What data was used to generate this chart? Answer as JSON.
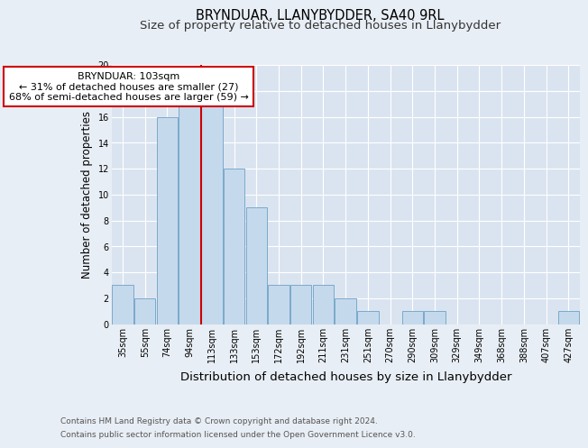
{
  "title": "BRYNDUAR, LLANYBYDDER, SA40 9RL",
  "subtitle": "Size of property relative to detached houses in Llanybydder",
  "xlabel": "Distribution of detached houses by size in Llanybydder",
  "ylabel": "Number of detached properties",
  "categories": [
    "35sqm",
    "55sqm",
    "74sqm",
    "94sqm",
    "113sqm",
    "133sqm",
    "153sqm",
    "172sqm",
    "192sqm",
    "211sqm",
    "231sqm",
    "251sqm",
    "270sqm",
    "290sqm",
    "309sqm",
    "329sqm",
    "349sqm",
    "368sqm",
    "388sqm",
    "407sqm",
    "427sqm"
  ],
  "values": [
    3,
    2,
    16,
    17,
    17,
    12,
    9,
    3,
    3,
    3,
    2,
    1,
    0,
    1,
    1,
    0,
    0,
    0,
    0,
    0,
    1
  ],
  "bar_color": "#c5d9ed",
  "bar_edge_color": "#7aaaca",
  "vline_index": 3.5,
  "vline_color": "#cc0000",
  "annotation_text": "BRYNDUAR: 103sqm\n← 31% of detached houses are smaller (27)\n68% of semi-detached houses are larger (59) →",
  "annotation_box_facecolor": "#ffffff",
  "annotation_box_edgecolor": "#cc0000",
  "ylim": [
    0,
    20
  ],
  "yticks": [
    0,
    2,
    4,
    6,
    8,
    10,
    12,
    14,
    16,
    18,
    20
  ],
  "bg_color": "#e8eef5",
  "plot_bg_color": "#dae4f0",
  "footer_line1": "Contains HM Land Registry data © Crown copyright and database right 2024.",
  "footer_line2": "Contains public sector information licensed under the Open Government Licence v3.0.",
  "title_fontsize": 10.5,
  "subtitle_fontsize": 9.5,
  "xlabel_fontsize": 9.5,
  "ylabel_fontsize": 8.5,
  "tick_fontsize": 7,
  "annotation_fontsize": 8,
  "footer_fontsize": 6.5
}
